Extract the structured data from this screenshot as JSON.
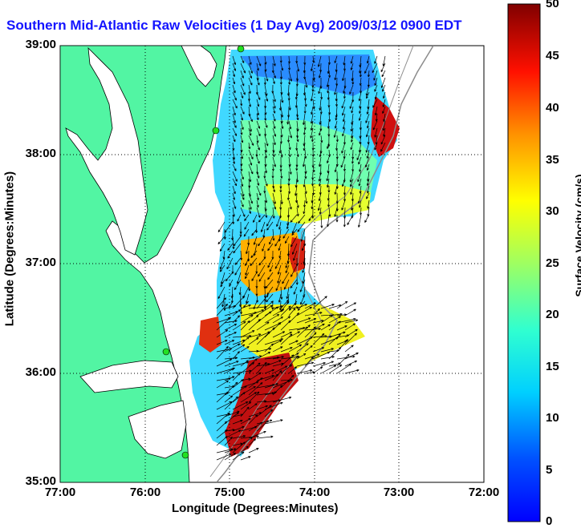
{
  "title": "Southern Mid-Atlantic Raw Velocities (1 Day Avg) 2009/03/12 0900 EDT",
  "map": {
    "ylabel": "Latitude (Degrees:Minutes)",
    "xlabel": "Longitude (Degrees:Minutes)",
    "yticks": [
      "39:00",
      "38:00",
      "37:00",
      "36:00",
      "35:00"
    ],
    "xticks": [
      "77:00",
      "76:00",
      "75:00",
      "74:00",
      "73:00",
      "72:00"
    ],
    "lat_range": [
      35,
      39
    ],
    "lon_range": [
      -77,
      -72
    ],
    "colors": {
      "land": "#52f5a3",
      "water": "#ffffff",
      "coast": "#000000",
      "isobath": "#8c8c8c",
      "station": "#22e022"
    }
  },
  "colorbar": {
    "label": "Surface Velocity (cm/s)",
    "ticks": [
      "50",
      "45",
      "40",
      "35",
      "30",
      "25",
      "20",
      "15",
      "10",
      "5",
      "0"
    ],
    "range": [
      0,
      50
    ],
    "colormap": "jet"
  }
}
